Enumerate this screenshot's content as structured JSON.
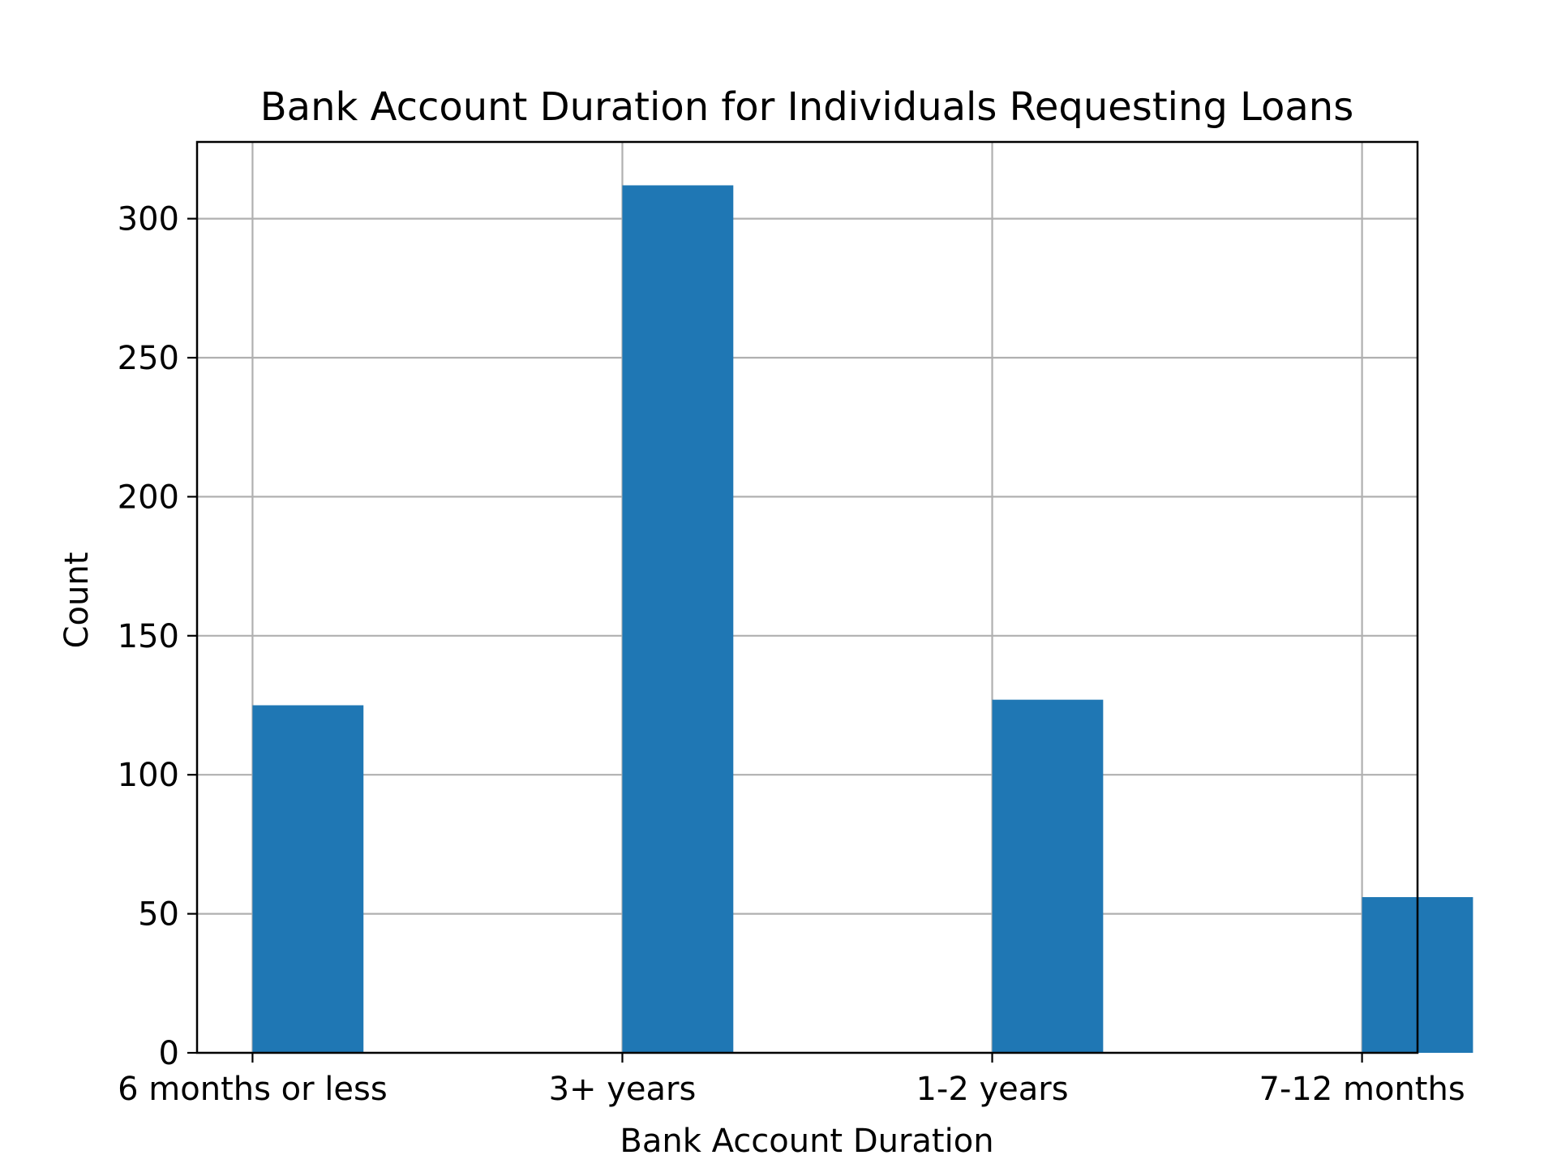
{
  "chart_data": {
    "type": "bar",
    "title": "Bank Account Duration for Individuals Requesting Loans",
    "xlabel": "Bank Account Duration",
    "ylabel": "Count",
    "categories": [
      "6 months or less",
      "3+ years",
      "1-2 years",
      "7-12 months"
    ],
    "x_positions": [
      0,
      1,
      2,
      3
    ],
    "values": [
      125,
      312,
      127,
      56
    ],
    "xlim": [
      -0.15,
      3.15
    ],
    "ylim": [
      0,
      327.6
    ],
    "yticks": [
      0,
      50,
      100,
      150,
      200,
      250,
      300
    ],
    "grid": true,
    "bar_color": "#1f77b4",
    "grid_color": "#b0b0b0"
  }
}
